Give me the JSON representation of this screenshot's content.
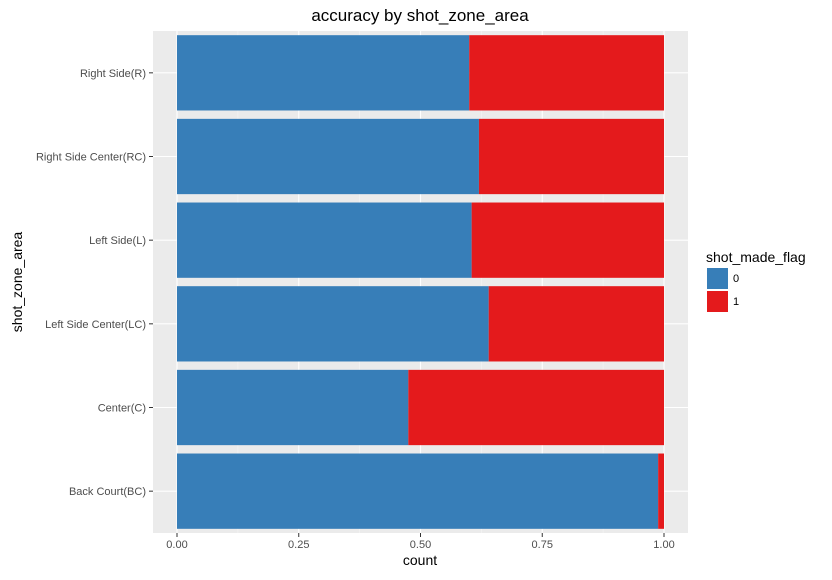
{
  "chart_data": {
    "type": "bar",
    "orientation": "horizontal",
    "stacked": true,
    "title": "accuracy by shot_zone_area",
    "xlabel": "count",
    "ylabel": "shot_zone_area",
    "xlim": [
      0,
      1
    ],
    "x_ticks": [
      "0.00",
      "0.25",
      "0.50",
      "0.75",
      "1.00"
    ],
    "grid": true,
    "categories": [
      "Right Side(R)",
      "Right Side Center(RC)",
      "Left Side(L)",
      "Left Side Center(LC)",
      "Center(C)",
      "Back Court(BC)"
    ],
    "series": [
      {
        "name": "0",
        "color": "#377eb8",
        "values": [
          0.6,
          0.62,
          0.605,
          0.64,
          0.475,
          0.988
        ]
      },
      {
        "name": "1",
        "color": "#e41a1c",
        "values": [
          0.4,
          0.38,
          0.395,
          0.36,
          0.525,
          0.012
        ]
      }
    ],
    "legend": {
      "title": "shot_made_flag",
      "position": "right"
    }
  }
}
